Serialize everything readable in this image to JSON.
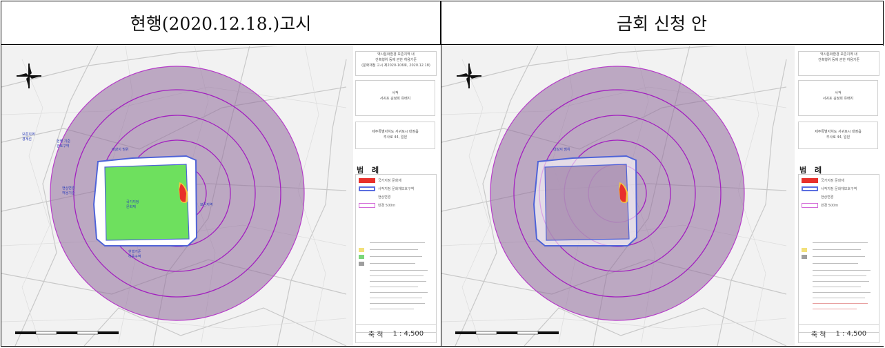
{
  "headers": {
    "left": "현행(2020.12.18.)고시",
    "right": "금회 신청 안"
  },
  "left_panel": {
    "map": {
      "zone_labels": [
        "국가지정 문화재",
        "보존지역",
        "현행 기준",
        "대상지 범위"
      ],
      "compass": "compass-icon"
    },
    "sidebar": {
      "title_box": [
        "역사문화환경 보존지역 내",
        "건축행위 등에 관한 허용기준",
        "(문화재청 고시 제2020-106호, 2020.12.18)"
      ],
      "name_box": [
        "사적",
        "서귀포 김정희 유배지"
      ],
      "address_box": [
        "제주특별자치도 서귀포시 대정읍",
        "추사로 44, 일원"
      ],
      "legend_title": "범 례",
      "legend": [
        {
          "label": "국가지정 문화재",
          "color": "#e8302b"
        },
        {
          "label": "사적지정 문화재보호구역",
          "color": "#5b6ee0"
        },
        {
          "label": "현상변경",
          "color": "#ffffff"
        },
        {
          "label": "반경 500m",
          "color": "#d36ad8"
        }
      ],
      "scale_label": "축 척",
      "scale_value": "1 : 4,500"
    }
  },
  "right_panel": {
    "map": {
      "compass": "compass-icon"
    },
    "sidebar": {
      "title_box": [
        "역사문화환경 보존지역 내",
        "건축행위 등에 관한 허용기준",
        ""
      ],
      "name_box": [
        "사적",
        "서귀포 김정희 유배지"
      ],
      "address_box": [
        "제주특별자치도 서귀포시 대정읍",
        "추사로 44, 일원"
      ],
      "legend_title": "범 례",
      "legend": [
        {
          "label": "국가지정 문화재",
          "color": "#e8302b"
        },
        {
          "label": "사적지정 문화재보호구역",
          "color": "#5b6ee0"
        },
        {
          "label": "현상변경",
          "color": "#ffffff"
        },
        {
          "label": "반경 500m",
          "color": "#d36ad8"
        }
      ],
      "scale_label": "축 척",
      "scale_value": "1 : 4,500"
    }
  }
}
